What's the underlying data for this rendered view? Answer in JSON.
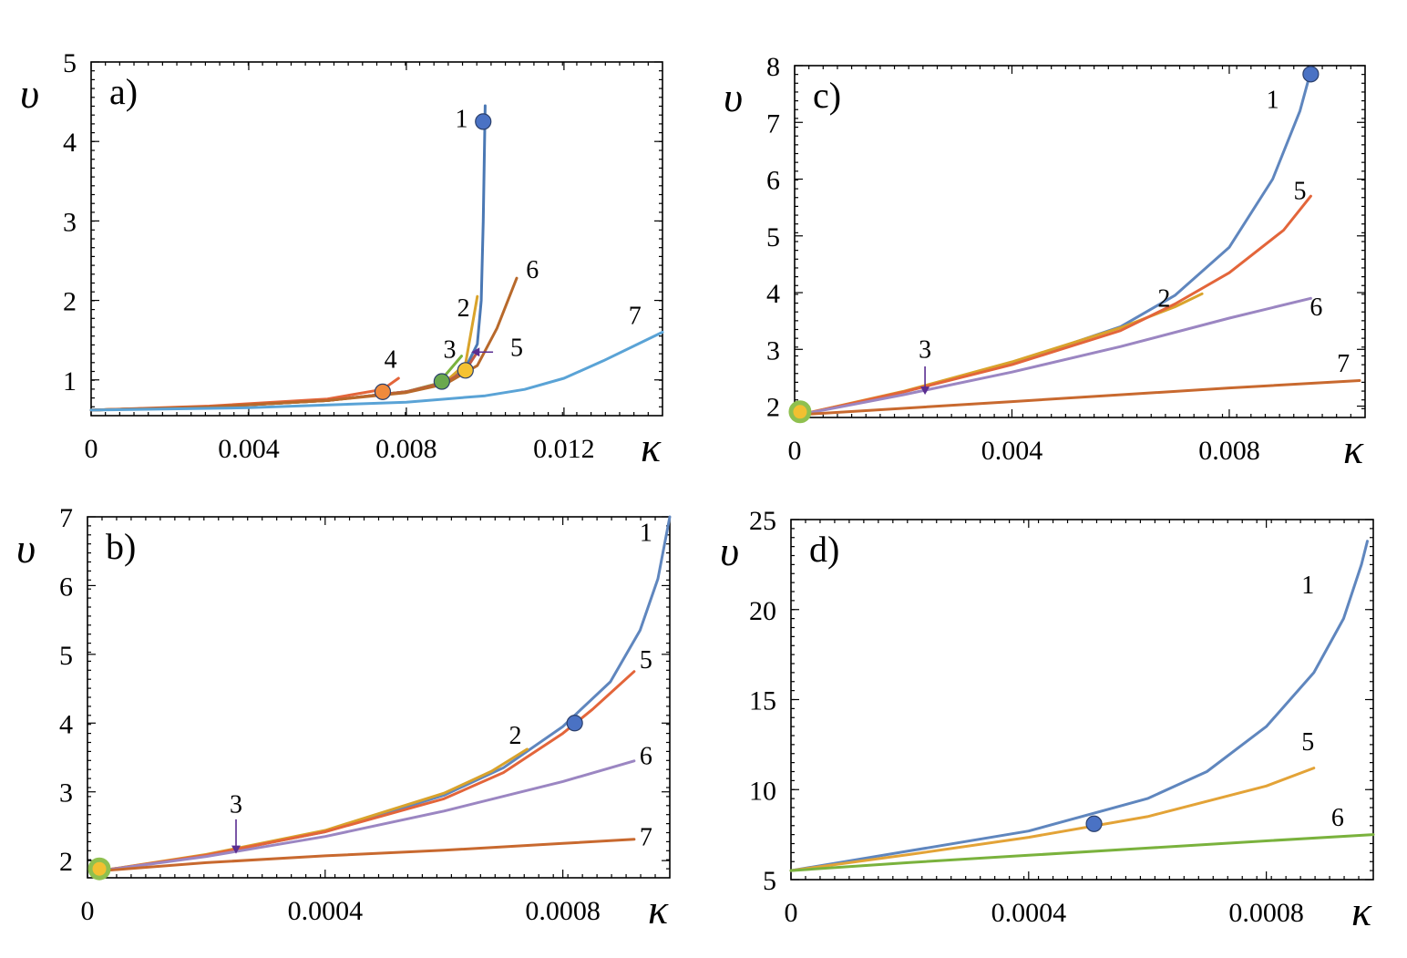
{
  "chart_data": [
    {
      "type": "line",
      "panel": "a)",
      "xlabel": "κ",
      "ylabel": "υ",
      "xlim": [
        0,
        0.0145
      ],
      "ylim": [
        0.55,
        5
      ],
      "xticks": [
        "0",
        "0.004",
        "0.008",
        "0.012"
      ],
      "xtick_values": [
        0,
        0.004,
        0.008,
        0.012
      ],
      "yticks": [
        "1",
        "2",
        "3",
        "4",
        "5"
      ],
      "ytick_values": [
        1,
        2,
        3,
        4,
        5
      ],
      "series": [
        {
          "name": "1",
          "color": "#4a78b4",
          "x": [
            0,
            0.003,
            0.006,
            0.008,
            0.009,
            0.0095,
            0.0098,
            0.0099,
            0.00995,
            0.01
          ],
          "y": [
            0.62,
            0.66,
            0.74,
            0.85,
            0.98,
            1.15,
            1.45,
            2.0,
            3.0,
            4.45
          ]
        },
        {
          "name": "2",
          "color": "#d9a32b",
          "x": [
            0,
            0.003,
            0.006,
            0.008,
            0.009,
            0.0095,
            0.0098
          ],
          "y": [
            0.62,
            0.66,
            0.74,
            0.85,
            0.98,
            1.2,
            2.05
          ]
        },
        {
          "name": "3",
          "color": "#7ab23d",
          "x": [
            0,
            0.003,
            0.006,
            0.008,
            0.0088,
            0.0094
          ],
          "y": [
            0.62,
            0.66,
            0.74,
            0.85,
            0.95,
            1.3
          ]
        },
        {
          "name": "4",
          "color": "#e3653a",
          "x": [
            0,
            0.003,
            0.006,
            0.0074,
            0.0078
          ],
          "y": [
            0.62,
            0.67,
            0.76,
            0.88,
            1.02
          ]
        },
        {
          "name": "5",
          "color": "#c05a44",
          "x": [
            0,
            0.003,
            0.006,
            0.008,
            0.009,
            0.0095,
            0.0098
          ],
          "y": [
            0.62,
            0.66,
            0.74,
            0.85,
            0.97,
            1.12,
            1.35
          ]
        },
        {
          "name": "6",
          "color": "#b8692b",
          "x": [
            0,
            0.003,
            0.006,
            0.008,
            0.009,
            0.0098,
            0.0103,
            0.0108
          ],
          "y": [
            0.62,
            0.66,
            0.74,
            0.84,
            0.95,
            1.18,
            1.65,
            2.28
          ]
        },
        {
          "name": "7",
          "color": "#5aa3d6",
          "x": [
            0,
            0.004,
            0.008,
            0.01,
            0.011,
            0.012,
            0.013,
            0.0145
          ],
          "y": [
            0.62,
            0.65,
            0.72,
            0.8,
            0.88,
            1.02,
            1.24,
            1.6
          ]
        }
      ],
      "markers": [
        {
          "series": "1",
          "x": 0.00995,
          "y": 4.25,
          "color": "#4a72c4"
        },
        {
          "series": "4",
          "x": 0.0074,
          "y": 0.85,
          "color": "#f08a3c"
        },
        {
          "series": "3",
          "x": 0.0089,
          "y": 0.98,
          "color": "#6aa84f"
        },
        {
          "series": "2",
          "x": 0.0095,
          "y": 1.12,
          "color": "#f5c232"
        }
      ],
      "annotations": [
        {
          "text": "1",
          "x": 0.0094,
          "y": 4.18
        },
        {
          "text": "2",
          "x": 0.00945,
          "y": 1.8
        },
        {
          "text": "3",
          "x": 0.0091,
          "y": 1.28
        },
        {
          "text": "4",
          "x": 0.0076,
          "y": 1.15
        },
        {
          "text": "5",
          "x": 0.0108,
          "y": 1.3
        },
        {
          "text": "6",
          "x": 0.0112,
          "y": 2.28
        },
        {
          "text": "7",
          "x": 0.0138,
          "y": 1.7
        }
      ]
    },
    {
      "type": "line",
      "panel": "b)",
      "xlabel": "κ",
      "ylabel": "υ",
      "xlim": [
        0,
        0.00098
      ],
      "ylim": [
        1.75,
        7
      ],
      "xticks": [
        "0",
        "0.0004",
        "0.0008"
      ],
      "xtick_values": [
        0,
        0.0004,
        0.0008
      ],
      "yticks": [
        "2",
        "3",
        "4",
        "5",
        "6",
        "7"
      ],
      "ytick_values": [
        2,
        3,
        4,
        5,
        6,
        7
      ],
      "series": [
        {
          "name": "1",
          "color": "#5f86be",
          "x": [
            2e-05,
            0.0002,
            0.0004,
            0.0006,
            0.0007,
            0.0008,
            0.00088,
            0.00093,
            0.00096,
            0.00098
          ],
          "y": [
            1.85,
            2.08,
            2.42,
            2.95,
            3.35,
            3.95,
            4.6,
            5.35,
            6.1,
            7.0
          ]
        },
        {
          "name": "2",
          "color": "#d9a32b",
          "x": [
            2e-05,
            0.0002,
            0.0004,
            0.0006,
            0.00068,
            0.00074
          ],
          "y": [
            1.85,
            2.09,
            2.44,
            2.98,
            3.3,
            3.62
          ]
        },
        {
          "name": "5",
          "color": "#e3653a",
          "x": [
            2e-05,
            0.0002,
            0.0004,
            0.0006,
            0.0007,
            0.0008,
            0.00085,
            0.00092
          ],
          "y": [
            1.85,
            2.08,
            2.42,
            2.9,
            3.28,
            3.85,
            4.2,
            4.75
          ]
        },
        {
          "name": "6",
          "color": "#9b86c2",
          "x": [
            2e-05,
            0.0002,
            0.0004,
            0.0006,
            0.0008,
            0.00092
          ],
          "y": [
            1.85,
            2.06,
            2.35,
            2.72,
            3.15,
            3.45
          ]
        },
        {
          "name": "7",
          "color": "#c8692f",
          "x": [
            2e-05,
            0.0002,
            0.0004,
            0.0006,
            0.0008,
            0.00092
          ],
          "y": [
            1.85,
            1.97,
            2.07,
            2.15,
            2.25,
            2.31
          ]
        }
      ],
      "markers": [
        {
          "series": "1",
          "x": 0.00082,
          "y": 4.0,
          "color": "#4a72c4"
        },
        {
          "series": "3",
          "x": 2e-05,
          "y": 1.88,
          "color": "#f2c031",
          "ring": "#8fc04f"
        }
      ],
      "annotations": [
        {
          "text": "1",
          "x": 0.00094,
          "y": 6.65
        },
        {
          "text": "2",
          "x": 0.00072,
          "y": 3.7
        },
        {
          "text": "3",
          "x": 0.00025,
          "y": 2.7
        },
        {
          "text": "5",
          "x": 0.00094,
          "y": 4.8
        },
        {
          "text": "6",
          "x": 0.00094,
          "y": 3.4
        },
        {
          "text": "7",
          "x": 0.00094,
          "y": 2.22
        }
      ],
      "arrows": [
        {
          "label": "3",
          "x": 0.00025,
          "y_from": 2.6,
          "y_to": 2.1
        }
      ]
    },
    {
      "type": "line",
      "panel": "c)",
      "xlabel": "κ",
      "ylabel": "υ",
      "xlim": [
        0,
        0.0105
      ],
      "ylim": [
        1.8,
        8
      ],
      "xticks": [
        "0",
        "0.004",
        "0.008"
      ],
      "xtick_values": [
        0,
        0.004,
        0.008
      ],
      "yticks": [
        "2",
        "3",
        "4",
        "5",
        "6",
        "7",
        "8"
      ],
      "ytick_values": [
        2,
        3,
        4,
        5,
        6,
        7,
        8
      ],
      "series": [
        {
          "name": "1",
          "color": "#5f86be",
          "x": [
            0.0001,
            0.002,
            0.004,
            0.006,
            0.007,
            0.008,
            0.0088,
            0.0093,
            0.0095
          ],
          "y": [
            1.85,
            2.25,
            2.75,
            3.4,
            3.95,
            4.8,
            6.0,
            7.2,
            7.9
          ]
        },
        {
          "name": "2",
          "color": "#d9a32b",
          "x": [
            0.0001,
            0.002,
            0.004,
            0.006,
            0.007,
            0.0075
          ],
          "y": [
            1.85,
            2.26,
            2.78,
            3.38,
            3.75,
            3.98
          ]
        },
        {
          "name": "5",
          "color": "#e3653a",
          "x": [
            0.0001,
            0.002,
            0.004,
            0.006,
            0.007,
            0.008,
            0.009,
            0.0095
          ],
          "y": [
            1.85,
            2.25,
            2.73,
            3.33,
            3.8,
            4.35,
            5.1,
            5.7
          ]
        },
        {
          "name": "6",
          "color": "#9b86c2",
          "x": [
            0.0001,
            0.002,
            0.004,
            0.006,
            0.008,
            0.0095
          ],
          "y": [
            1.85,
            2.2,
            2.6,
            3.05,
            3.55,
            3.9
          ]
        },
        {
          "name": "7",
          "color": "#c8692f",
          "x": [
            0.0001,
            0.004,
            0.008,
            0.0104
          ],
          "y": [
            1.85,
            2.08,
            2.32,
            2.45
          ]
        }
      ],
      "markers": [
        {
          "series": "1",
          "x": 0.0095,
          "y": 7.85,
          "color": "#4a72c4"
        },
        {
          "series": "3",
          "x": 0.0001,
          "y": 1.9,
          "color": "#f2c031",
          "ring": "#8fc04f"
        }
      ],
      "annotations": [
        {
          "text": "1",
          "x": 0.0088,
          "y": 7.25
        },
        {
          "text": "2",
          "x": 0.0068,
          "y": 3.75
        },
        {
          "text": "3",
          "x": 0.0024,
          "y": 2.85
        },
        {
          "text": "5",
          "x": 0.0093,
          "y": 5.65
        },
        {
          "text": "6",
          "x": 0.0096,
          "y": 3.6
        },
        {
          "text": "7",
          "x": 0.0101,
          "y": 2.6
        }
      ],
      "arrows": [
        {
          "label": "3",
          "x": 0.0024,
          "y_from": 2.7,
          "y_to": 2.2
        }
      ]
    },
    {
      "type": "line",
      "panel": "d)",
      "xlabel": "κ",
      "ylabel": "υ",
      "xlim": [
        0,
        0.00098
      ],
      "ylim": [
        5,
        25
      ],
      "xticks": [
        "0",
        "0.0004",
        "0.0008"
      ],
      "xtick_values": [
        0,
        0.0004,
        0.0008
      ],
      "yticks": [
        "5",
        "10",
        "15",
        "20",
        "25"
      ],
      "ytick_values": [
        5,
        10,
        15,
        20,
        25
      ],
      "series": [
        {
          "name": "1",
          "color": "#5f86be",
          "x": [
            0,
            0.0002,
            0.0004,
            0.0006,
            0.0007,
            0.0008,
            0.00088,
            0.00093,
            0.00096,
            0.00097
          ],
          "y": [
            5.5,
            6.6,
            7.7,
            9.5,
            11.0,
            13.5,
            16.5,
            19.5,
            22.5,
            23.8
          ]
        },
        {
          "name": "5",
          "color": "#e3a337",
          "x": [
            0,
            0.0002,
            0.0004,
            0.0006,
            0.0008,
            0.00088
          ],
          "y": [
            5.5,
            6.4,
            7.35,
            8.5,
            10.2,
            11.2
          ]
        },
        {
          "name": "6",
          "color": "#7ab23d",
          "x": [
            0,
            0.0002,
            0.0004,
            0.0006,
            0.0008,
            0.00098
          ],
          "y": [
            5.5,
            5.95,
            6.35,
            6.75,
            7.15,
            7.5
          ]
        }
      ],
      "markers": [
        {
          "series": "1",
          "x": 0.00051,
          "y": 8.1,
          "color": "#4a72c4"
        }
      ],
      "annotations": [
        {
          "text": "1",
          "x": 0.00087,
          "y": 20.9
        },
        {
          "text": "5",
          "x": 0.00087,
          "y": 12.2
        },
        {
          "text": "6",
          "x": 0.00092,
          "y": 8.0
        }
      ]
    }
  ]
}
